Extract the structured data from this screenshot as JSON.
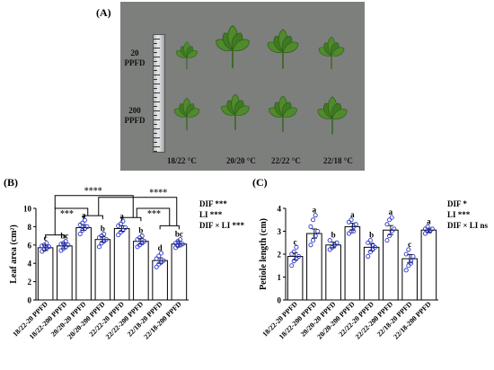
{
  "panels": {
    "a": "(A)",
    "b": "(B)",
    "c": "(C)"
  },
  "photo": {
    "row_labels": [
      "20 PPFD",
      "200 PPFD"
    ],
    "temp_labels": [
      "18/22 °C",
      "20/20 °C",
      "22/22 °C",
      "22/18 °C"
    ]
  },
  "colors": {
    "photo_background": "#7d7f7d",
    "leaf": "#4f8a2c",
    "bar_fill": "#ffffff",
    "bar_stroke": "#000000",
    "point": "#2b36c9",
    "bracket": "#000000"
  },
  "chart_data": [
    {
      "type": "bar",
      "ylabel": "Leaf area (cm²)",
      "ylim": [
        0,
        10
      ],
      "yticks": [
        0,
        2,
        4,
        6,
        8,
        10
      ],
      "categories": [
        "18/22-20 PPFD",
        "18/22-200 PPFD",
        "20/20-20 PPFD",
        "20/20-200 PPFD",
        "22/22-20 PPFD",
        "22/22-200 PPFD",
        "22/18-20 PPFD",
        "22/18-200 PPFD"
      ],
      "values": [
        5.7,
        5.9,
        7.9,
        6.6,
        7.8,
        6.4,
        4.3,
        6.1
      ],
      "errors": [
        0.3,
        0.3,
        0.3,
        0.3,
        0.3,
        0.3,
        0.3,
        0.3
      ],
      "letters": [
        "c",
        "bc",
        "a",
        "b",
        "a",
        "b",
        "d",
        "bc"
      ],
      "points": [
        [
          5.3,
          5.5,
          5.7,
          5.8,
          5.9,
          6.0,
          6.2
        ],
        [
          5.4,
          5.6,
          5.8,
          6.0,
          6.1,
          6.2,
          6.4
        ],
        [
          7.2,
          7.6,
          7.8,
          8.0,
          8.2,
          8.4,
          8.7
        ],
        [
          5.8,
          6.2,
          6.4,
          6.6,
          6.8,
          7.0,
          7.2
        ],
        [
          7.1,
          7.4,
          7.6,
          7.9,
          8.1,
          8.3,
          8.6
        ],
        [
          5.8,
          6.0,
          6.2,
          6.4,
          6.6,
          6.8,
          7.0
        ],
        [
          3.6,
          3.9,
          4.1,
          4.3,
          4.5,
          4.8,
          5.1
        ],
        [
          5.7,
          5.9,
          6.0,
          6.1,
          6.2,
          6.4,
          6.6
        ]
      ],
      "stats": [
        "DIF ***",
        "LI   ***",
        "DIF × LI ***"
      ],
      "bracket_labels": [
        "***",
        "****",
        "***",
        "****"
      ]
    },
    {
      "type": "bar",
      "ylabel": "Petiole length (cm)",
      "ylim": [
        0,
        4
      ],
      "yticks": [
        0,
        1,
        2,
        3,
        4
      ],
      "categories": [
        "18/22-20 PPFD",
        "18/22-200 PPFD",
        "20/20-20 PPFD",
        "20/20-200 PPFD",
        "22/22-20 PPFD",
        "22/22-200 PPFD",
        "22/18-20 PPFD",
        "22/18-200 PPFD"
      ],
      "values": [
        1.9,
        2.9,
        2.4,
        3.2,
        2.3,
        3.05,
        1.8,
        3.05
      ],
      "errors": [
        0.15,
        0.2,
        0.12,
        0.15,
        0.15,
        0.2,
        0.18,
        0.08
      ],
      "letters": [
        "c",
        "a",
        "b",
        "a",
        "b",
        "a",
        "c",
        "a"
      ],
      "points": [
        [
          1.5,
          1.7,
          1.8,
          1.9,
          2.0,
          2.1,
          2.3
        ],
        [
          2.4,
          2.6,
          2.8,
          3.0,
          3.2,
          3.5,
          3.7
        ],
        [
          2.2,
          2.3,
          2.4,
          2.5,
          2.6,
          2.3,
          2.4
        ],
        [
          2.9,
          3.0,
          3.2,
          3.3,
          3.4,
          3.5,
          3.0
        ],
        [
          1.9,
          2.1,
          2.2,
          2.3,
          2.5,
          2.6,
          2.4
        ],
        [
          2.6,
          2.8,
          3.0,
          3.1,
          3.3,
          3.5,
          3.6
        ],
        [
          1.3,
          1.5,
          1.7,
          1.9,
          2.0,
          2.2,
          1.6
        ],
        [
          2.9,
          3.0,
          3.0,
          3.1,
          3.1,
          3.2,
          3.0
        ]
      ],
      "stats": [
        "DIF *",
        "LI   ***",
        "DIF × LI ns"
      ]
    }
  ]
}
